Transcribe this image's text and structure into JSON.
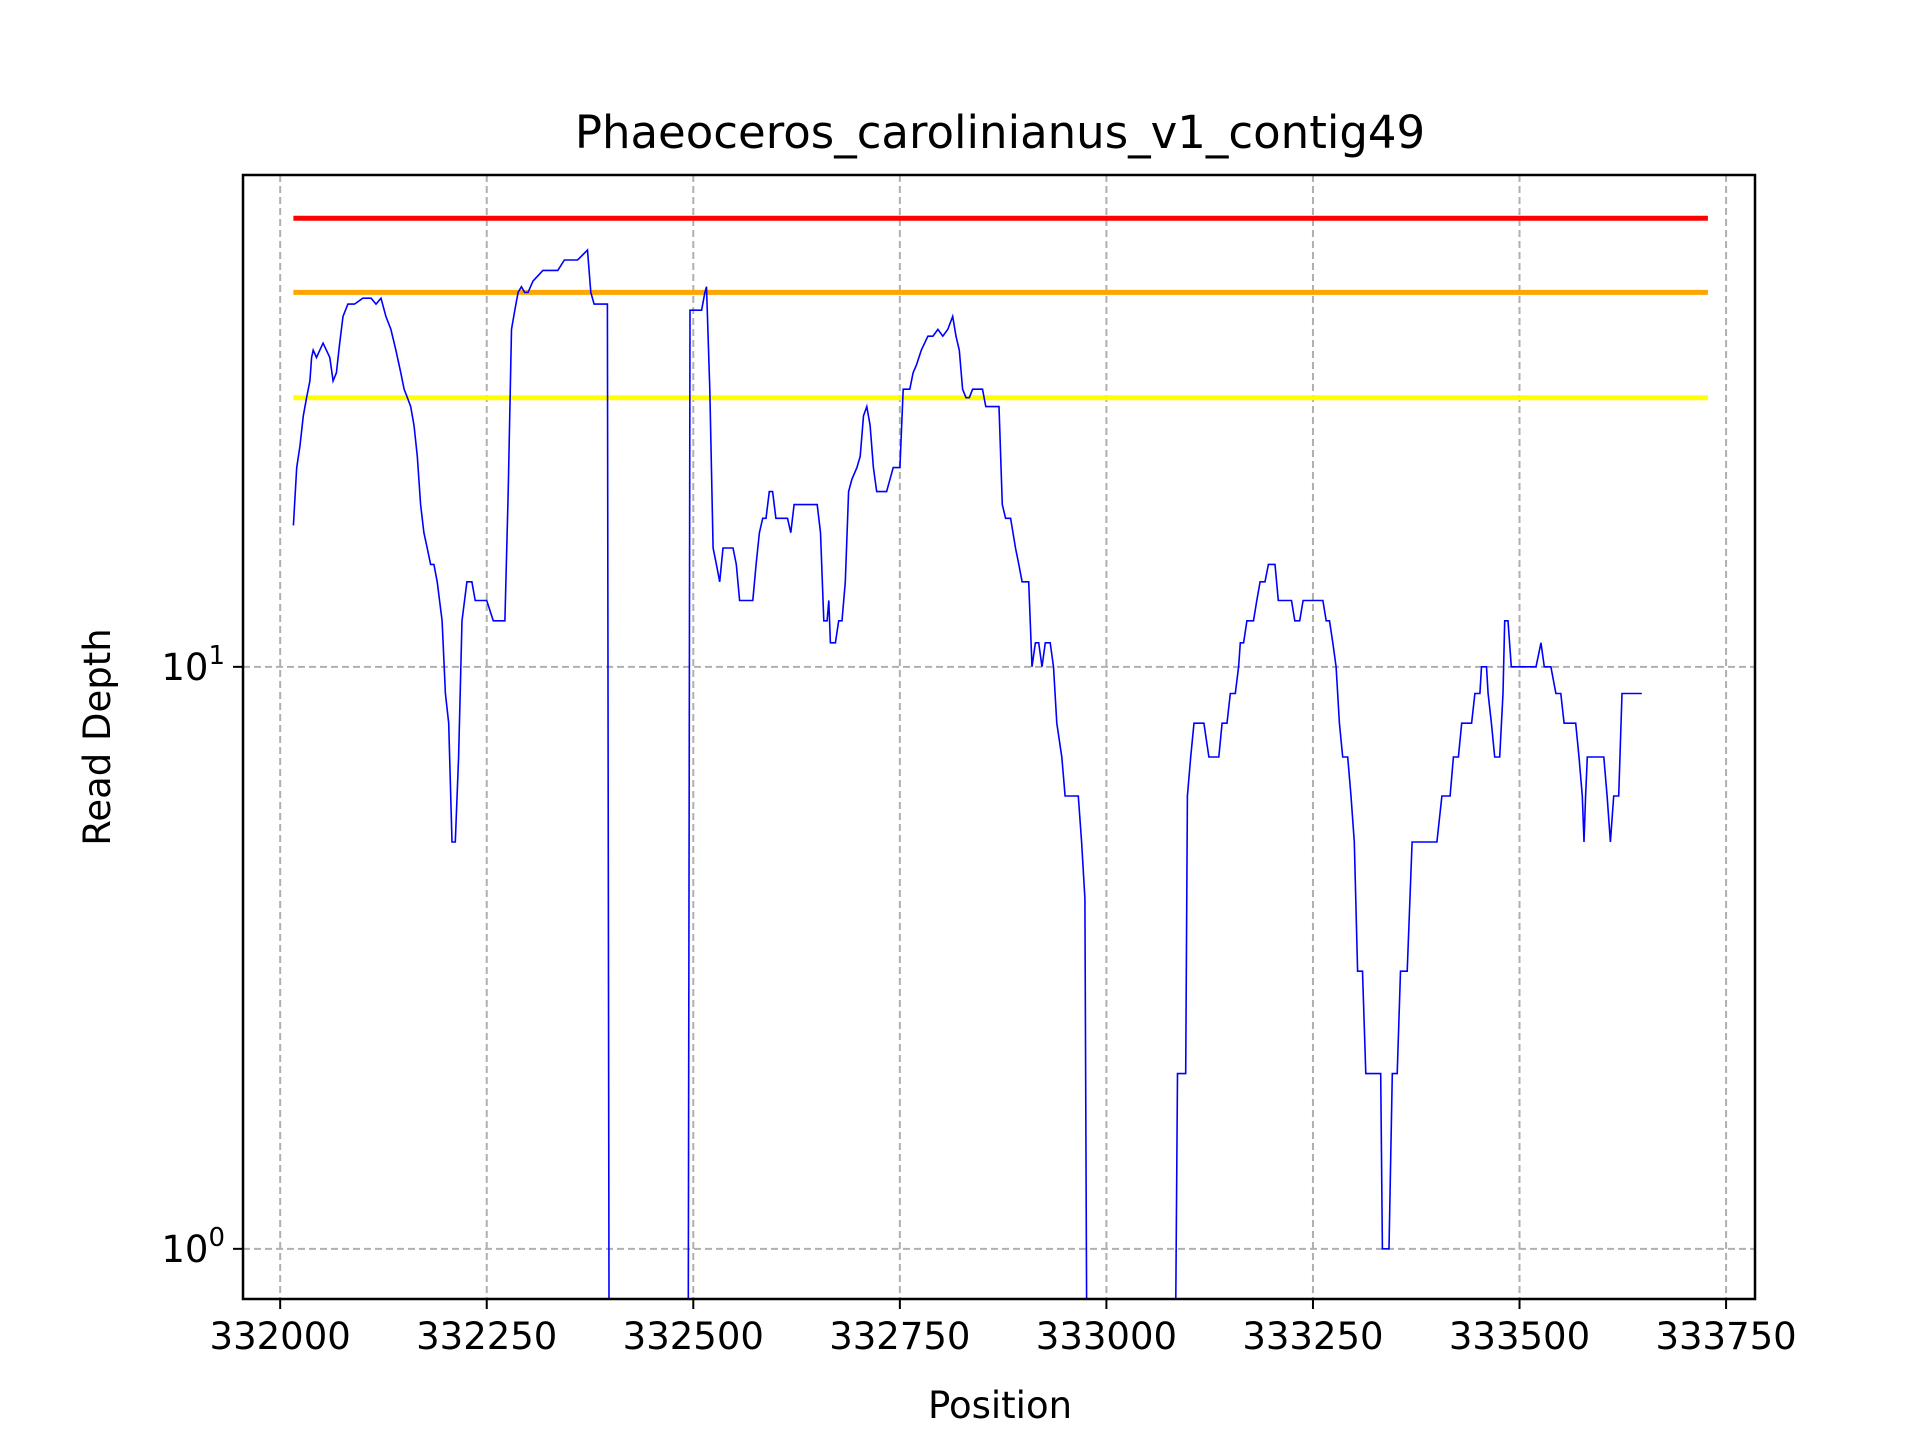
{
  "chart_data": {
    "type": "line",
    "title": "Phaeoceros_carolinianus_v1_contig49",
    "xlabel": "Position",
    "ylabel": "Read Depth",
    "xlim": [
      331955,
      333785
    ],
    "ylim": [
      0.82,
      70
    ],
    "yscale": "log",
    "grid": true,
    "x_ticks": [
      332000,
      332250,
      332500,
      332750,
      333000,
      333250,
      333500,
      333750
    ],
    "x_tick_labels": [
      "332000",
      "332250",
      "332500",
      "332750",
      "333000",
      "333250",
      "333500",
      "333750"
    ],
    "y_ticks": [
      {
        "value": 1,
        "base": "10",
        "exp": "0"
      },
      {
        "value": 10,
        "base": "10",
        "exp": "1"
      }
    ],
    "thresholds": [
      {
        "value": 59,
        "color": "#ff0000"
      },
      {
        "value": 44,
        "color": "#ffa500"
      },
      {
        "value": 29,
        "color": "#ffff00"
      }
    ],
    "threshold_range": [
      332016,
      333728
    ],
    "series": [
      {
        "color": "#0000ff",
        "points": [
          [
            332016,
            17.5
          ],
          [
            332020,
            22
          ],
          [
            332024,
            24
          ],
          [
            332028,
            27
          ],
          [
            332032,
            29
          ],
          [
            332036,
            31
          ],
          [
            332038,
            34
          ],
          [
            332040,
            35
          ],
          [
            332044,
            34
          ],
          [
            332048,
            35
          ],
          [
            332052,
            36
          ],
          [
            332056,
            35
          ],
          [
            332060,
            34
          ],
          [
            332064,
            31
          ],
          [
            332068,
            32
          ],
          [
            332072,
            36
          ],
          [
            332076,
            40
          ],
          [
            332082,
            42
          ],
          [
            332090,
            42
          ],
          [
            332100,
            43
          ],
          [
            332110,
            43
          ],
          [
            332116,
            42
          ],
          [
            332122,
            43
          ],
          [
            332128,
            40
          ],
          [
            332134,
            38
          ],
          [
            332140,
            35
          ],
          [
            332146,
            32
          ],
          [
            332150,
            30
          ],
          [
            332154,
            29
          ],
          [
            332158,
            28
          ],
          [
            332162,
            26
          ],
          [
            332166,
            23
          ],
          [
            332170,
            19
          ],
          [
            332174,
            17
          ],
          [
            332178,
            16
          ],
          [
            332182,
            15
          ],
          [
            332186,
            15
          ],
          [
            332190,
            14
          ],
          [
            332196,
            12
          ],
          [
            332200,
            9
          ],
          [
            332204,
            8
          ],
          [
            332208,
            5
          ],
          [
            332212,
            5
          ],
          [
            332216,
            7
          ],
          [
            332220,
            12
          ],
          [
            332226,
            14
          ],
          [
            332232,
            14
          ],
          [
            332236,
            13
          ],
          [
            332240,
            13
          ],
          [
            332250,
            13
          ],
          [
            332258,
            12
          ],
          [
            332266,
            12
          ],
          [
            332272,
            12
          ],
          [
            332276,
            20
          ],
          [
            332280,
            38
          ],
          [
            332284,
            41
          ],
          [
            332288,
            44
          ],
          [
            332292,
            45
          ],
          [
            332296,
            44
          ],
          [
            332300,
            44
          ],
          [
            332306,
            46
          ],
          [
            332312,
            47
          ],
          [
            332318,
            48
          ],
          [
            332324,
            48
          ],
          [
            332330,
            48
          ],
          [
            332336,
            48
          ],
          [
            332344,
            50
          ],
          [
            332354,
            50
          ],
          [
            332360,
            50
          ],
          [
            332366,
            51
          ],
          [
            332372,
            52
          ],
          [
            332376,
            44
          ],
          [
            332380,
            42
          ],
          [
            332384,
            42
          ],
          [
            332388,
            42
          ],
          [
            332392,
            42
          ],
          [
            332396,
            42
          ],
          [
            332398,
            0.82
          ],
          [
            332494,
            0.82
          ],
          [
            332496,
            41
          ],
          [
            332504,
            41
          ],
          [
            332510,
            41
          ],
          [
            332514,
            44
          ],
          [
            332516,
            45
          ],
          [
            332520,
            30
          ],
          [
            332524,
            16
          ],
          [
            332528,
            15
          ],
          [
            332532,
            14
          ],
          [
            332536,
            16
          ],
          [
            332542,
            16
          ],
          [
            332548,
            16
          ],
          [
            332552,
            15
          ],
          [
            332556,
            13
          ],
          [
            332560,
            13
          ],
          [
            332566,
            13
          ],
          [
            332572,
            13
          ],
          [
            332576,
            15
          ],
          [
            332580,
            17
          ],
          [
            332584,
            18
          ],
          [
            332588,
            18
          ],
          [
            332592,
            20
          ],
          [
            332596,
            20
          ],
          [
            332600,
            18
          ],
          [
            332606,
            18
          ],
          [
            332614,
            18
          ],
          [
            332618,
            17
          ],
          [
            332622,
            19
          ],
          [
            332628,
            19
          ],
          [
            332640,
            19
          ],
          [
            332650,
            19
          ],
          [
            332654,
            17
          ],
          [
            332658,
            12
          ],
          [
            332662,
            12
          ],
          [
            332664,
            13
          ],
          [
            332666,
            11
          ],
          [
            332672,
            11
          ],
          [
            332676,
            12
          ],
          [
            332680,
            12
          ],
          [
            332684,
            14
          ],
          [
            332688,
            20
          ],
          [
            332692,
            21
          ],
          [
            332698,
            22
          ],
          [
            332702,
            23
          ],
          [
            332706,
            27
          ],
          [
            332710,
            28
          ],
          [
            332714,
            26
          ],
          [
            332718,
            22
          ],
          [
            332722,
            20
          ],
          [
            332726,
            20
          ],
          [
            332734,
            20
          ],
          [
            332742,
            22
          ],
          [
            332750,
            22
          ],
          [
            332754,
            30
          ],
          [
            332758,
            30
          ],
          [
            332762,
            30
          ],
          [
            332766,
            32
          ],
          [
            332770,
            33
          ],
          [
            332776,
            35
          ],
          [
            332784,
            37
          ],
          [
            332790,
            37
          ],
          [
            332796,
            38
          ],
          [
            332802,
            37
          ],
          [
            332808,
            38
          ],
          [
            332814,
            40
          ],
          [
            332818,
            37
          ],
          [
            332822,
            35
          ],
          [
            332826,
            30
          ],
          [
            332830,
            29
          ],
          [
            332834,
            29
          ],
          [
            332838,
            30
          ],
          [
            332844,
            30
          ],
          [
            332850,
            30
          ],
          [
            332854,
            28
          ],
          [
            332860,
            28
          ],
          [
            332866,
            28
          ],
          [
            332870,
            28
          ],
          [
            332874,
            19
          ],
          [
            332878,
            18
          ],
          [
            332884,
            18
          ],
          [
            332890,
            16
          ],
          [
            332894,
            15
          ],
          [
            332898,
            14
          ],
          [
            332906,
            14
          ],
          [
            332910,
            10
          ],
          [
            332914,
            11
          ],
          [
            332918,
            11
          ],
          [
            332922,
            10
          ],
          [
            332926,
            11
          ],
          [
            332932,
            11
          ],
          [
            332936,
            10
          ],
          [
            332940,
            8
          ],
          [
            332946,
            7
          ],
          [
            332950,
            6
          ],
          [
            332958,
            6
          ],
          [
            332966,
            6
          ],
          [
            332970,
            5
          ],
          [
            332974,
            4
          ],
          [
            332976,
            0.82
          ],
          [
            333084,
            0.82
          ],
          [
            333086,
            2
          ],
          [
            333096,
            2
          ],
          [
            333098,
            6
          ],
          [
            333102,
            7
          ],
          [
            333106,
            8
          ],
          [
            333118,
            8
          ],
          [
            333124,
            7
          ],
          [
            333136,
            7
          ],
          [
            333140,
            8
          ],
          [
            333146,
            8
          ],
          [
            333150,
            9
          ],
          [
            333156,
            9
          ],
          [
            333160,
            10
          ],
          [
            333162,
            11
          ],
          [
            333166,
            11
          ],
          [
            333170,
            12
          ],
          [
            333178,
            12
          ],
          [
            333182,
            13
          ],
          [
            333186,
            14
          ],
          [
            333192,
            14
          ],
          [
            333196,
            15
          ],
          [
            333204,
            15
          ],
          [
            333208,
            13
          ],
          [
            333218,
            13
          ],
          [
            333224,
            13
          ],
          [
            333228,
            12
          ],
          [
            333234,
            12
          ],
          [
            333238,
            13
          ],
          [
            333246,
            13
          ],
          [
            333254,
            13
          ],
          [
            333262,
            13
          ],
          [
            333266,
            12
          ],
          [
            333270,
            12
          ],
          [
            333274,
            11
          ],
          [
            333278,
            10
          ],
          [
            333282,
            8
          ],
          [
            333286,
            7
          ],
          [
            333292,
            7
          ],
          [
            333296,
            6
          ],
          [
            333300,
            5
          ],
          [
            333304,
            3
          ],
          [
            333310,
            3
          ],
          [
            333314,
            2
          ],
          [
            333320,
            2
          ],
          [
            333326,
            2
          ],
          [
            333332,
            2
          ],
          [
            333334,
            1
          ],
          [
            333342,
            1
          ],
          [
            333346,
            2
          ],
          [
            333352,
            2
          ],
          [
            333356,
            3
          ],
          [
            333364,
            3
          ],
          [
            333370,
            5
          ],
          [
            333380,
            5
          ],
          [
            333390,
            5
          ],
          [
            333400,
            5
          ],
          [
            333406,
            6
          ],
          [
            333416,
            6
          ],
          [
            333420,
            7
          ],
          [
            333426,
            7
          ],
          [
            333430,
            8
          ],
          [
            333436,
            8
          ],
          [
            333442,
            8
          ],
          [
            333446,
            9
          ],
          [
            333452,
            9
          ],
          [
            333454,
            10
          ],
          [
            333460,
            10
          ],
          [
            333462,
            9
          ],
          [
            333466,
            8
          ],
          [
            333470,
            7
          ],
          [
            333476,
            7
          ],
          [
            333480,
            9
          ],
          [
            333482,
            12
          ],
          [
            333486,
            12
          ],
          [
            333490,
            10
          ],
          [
            333500,
            10
          ],
          [
            333510,
            10
          ],
          [
            333520,
            10
          ],
          [
            333526,
            11
          ],
          [
            333530,
            10
          ],
          [
            333538,
            10
          ],
          [
            333544,
            9
          ],
          [
            333550,
            9
          ],
          [
            333554,
            8
          ],
          [
            333562,
            8
          ],
          [
            333568,
            8
          ],
          [
            333572,
            7
          ],
          [
            333576,
            6
          ],
          [
            333578,
            5
          ],
          [
            333580,
            6
          ],
          [
            333582,
            7
          ],
          [
            333590,
            7
          ],
          [
            333596,
            7
          ],
          [
            333602,
            7
          ],
          [
            333606,
            6
          ],
          [
            333610,
            5
          ],
          [
            333614,
            6
          ],
          [
            333620,
            6
          ],
          [
            333624,
            9
          ],
          [
            333632,
            9
          ],
          [
            333640,
            9
          ],
          [
            333648,
            9
          ]
        ]
      }
    ]
  }
}
